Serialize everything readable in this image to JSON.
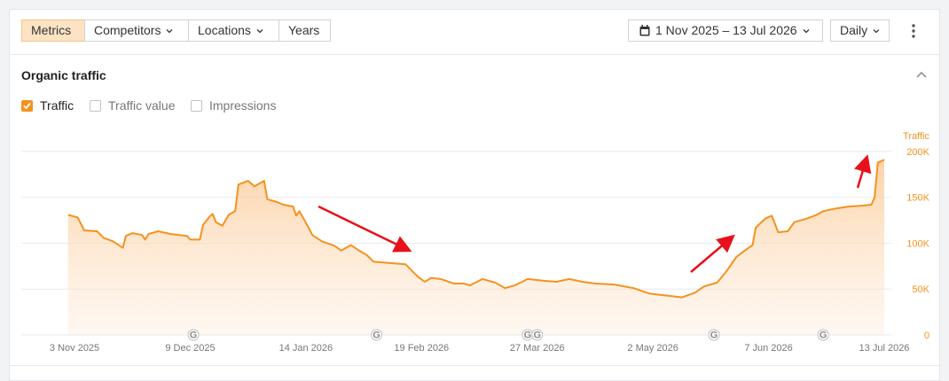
{
  "toolbar": {
    "tabs": [
      {
        "label": "Metrics",
        "active": true,
        "dropdown": false
      },
      {
        "label": "Competitors",
        "active": false,
        "dropdown": true
      },
      {
        "label": "Locations",
        "active": false,
        "dropdown": true
      },
      {
        "label": "Years",
        "active": false,
        "dropdown": false
      }
    ],
    "date_range": "1 Nov 2025 – 13 Jul 2026",
    "granularity": "Daily"
  },
  "panel": {
    "title": "Organic traffic",
    "checkboxes": [
      {
        "label": "Traffic",
        "checked": true
      },
      {
        "label": "Traffic value",
        "checked": false
      },
      {
        "label": "Impressions",
        "checked": false
      }
    ]
  },
  "chart_data": {
    "type": "area",
    "y_label": "Traffic",
    "color": "#f5921e",
    "grid": true,
    "x": [
      "2025-11-01",
      "2025-11-04",
      "2025-11-06",
      "2025-11-10",
      "2025-11-12",
      "2025-11-15",
      "2025-11-18",
      "2025-11-19",
      "2025-11-21",
      "2025-11-24",
      "2025-11-25",
      "2025-11-26",
      "2025-11-29",
      "2025-12-03",
      "2025-12-08",
      "2025-12-09",
      "2025-12-12",
      "2025-12-13",
      "2025-12-15",
      "2025-12-16",
      "2025-12-17",
      "2025-12-19",
      "2025-12-21",
      "2025-12-23",
      "2025-12-24",
      "2025-12-27",
      "2025-12-29",
      "2026-01-01",
      "2026-01-02",
      "2026-01-05",
      "2026-01-07",
      "2026-01-10",
      "2026-01-11",
      "2026-01-12",
      "2026-01-15",
      "2026-01-16",
      "2026-01-19",
      "2026-01-23",
      "2026-01-25",
      "2026-01-28",
      "2026-01-31",
      "2026-02-02",
      "2026-02-04",
      "2026-02-07",
      "2026-02-14",
      "2026-02-18",
      "2026-02-20",
      "2026-02-22",
      "2026-02-25",
      "2026-03-01",
      "2026-03-04",
      "2026-03-06",
      "2026-03-10",
      "2026-03-14",
      "2026-03-17",
      "2026-03-20",
      "2026-03-24",
      "2026-03-29",
      "2026-04-02",
      "2026-04-06",
      "2026-04-10",
      "2026-04-14",
      "2026-04-20",
      "2026-04-26",
      "2026-05-01",
      "2026-05-06",
      "2026-05-11",
      "2026-05-15",
      "2026-05-18",
      "2026-05-22",
      "2026-05-25",
      "2026-05-28",
      "2026-05-31",
      "2026-06-02",
      "2026-06-03",
      "2026-06-06",
      "2026-06-08",
      "2026-06-10",
      "2026-06-13",
      "2026-06-15",
      "2026-06-19",
      "2026-06-22",
      "2026-06-24",
      "2026-06-28",
      "2026-07-02",
      "2026-07-06",
      "2026-07-09",
      "2026-07-10",
      "2026-07-11",
      "2026-07-13"
    ],
    "values": [
      131000,
      128000,
      114000,
      113000,
      106000,
      102000,
      95000,
      108000,
      111000,
      109000,
      104000,
      110000,
      113000,
      110000,
      108000,
      104000,
      104000,
      120000,
      129000,
      132000,
      123000,
      119000,
      131000,
      135000,
      164000,
      168000,
      162000,
      168000,
      148000,
      145000,
      142000,
      140000,
      130000,
      135000,
      116000,
      109000,
      102000,
      97000,
      92000,
      98000,
      91000,
      87000,
      80000,
      79000,
      77000,
      63000,
      58000,
      62000,
      61000,
      56000,
      56000,
      54000,
      61000,
      57000,
      51000,
      54000,
      61000,
      59000,
      58000,
      61000,
      58000,
      56000,
      55000,
      51000,
      45000,
      43000,
      41000,
      46000,
      53000,
      57000,
      70000,
      85000,
      93000,
      98000,
      117000,
      127000,
      130000,
      112000,
      113000,
      123000,
      127000,
      131000,
      135000,
      138000,
      140000,
      141000,
      142000,
      150000,
      188000,
      191000
    ],
    "xlim": [
      "2025-11-01",
      "2026-07-13"
    ],
    "xticks": [
      {
        "value": "2025-11-03",
        "label": "3 Nov 2025"
      },
      {
        "value": "2025-12-09",
        "label": "9 Dec 2025"
      },
      {
        "value": "2026-01-14",
        "label": "14 Jan 2026"
      },
      {
        "value": "2026-02-19",
        "label": "19 Feb 2026"
      },
      {
        "value": "2026-03-27",
        "label": "27 Mar 2026"
      },
      {
        "value": "2026-05-02",
        "label": "2 May 2026"
      },
      {
        "value": "2026-06-07",
        "label": "7 Jun 2026"
      },
      {
        "value": "2026-07-13",
        "label": "13 Jul 2026"
      }
    ],
    "ylim": [
      0,
      200000
    ],
    "yticks": [
      0,
      {
        "value": 50000,
        "label": "50K"
      },
      {
        "value": 100000,
        "label": "100K"
      },
      {
        "value": 150000,
        "label": "150K"
      },
      {
        "value": 200000,
        "label": "200K"
      }
    ],
    "annotations": [
      {
        "x": "2025-12-10",
        "label": "G"
      },
      {
        "x": "2026-02-05",
        "label": "G"
      },
      {
        "x": "2026-03-24",
        "label": "G"
      },
      {
        "x": "2026-03-27",
        "label": "G"
      },
      {
        "x": "2026-05-21",
        "label": "G"
      },
      {
        "x": "2026-06-24",
        "label": "G"
      }
    ]
  }
}
